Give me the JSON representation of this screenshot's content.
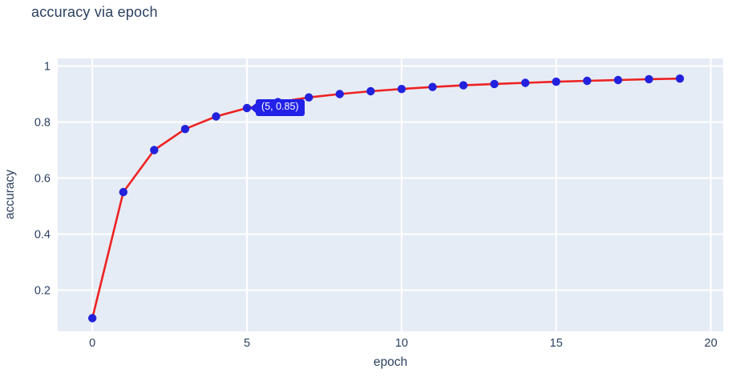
{
  "title": "accuracy via epoch",
  "chart_data": {
    "type": "line",
    "title": "accuracy via epoch",
    "xlabel": "epoch",
    "ylabel": "accuracy",
    "series": [
      {
        "name": "accuracy",
        "x": [
          0,
          1,
          2,
          3,
          4,
          5,
          6,
          7,
          8,
          9,
          10,
          11,
          12,
          13,
          14,
          15,
          16,
          17,
          18,
          19
        ],
        "y": [
          0.1,
          0.55,
          0.7,
          0.775,
          0.82,
          0.85,
          0.871,
          0.888,
          0.9,
          0.91,
          0.918,
          0.925,
          0.931,
          0.936,
          0.94,
          0.944,
          0.947,
          0.95,
          0.953,
          0.955
        ],
        "line_color": "#ee2222",
        "marker_color": "#2222dd"
      }
    ],
    "xticks": [
      0,
      5,
      10,
      15,
      20
    ],
    "yticks": [
      0.2,
      0.4,
      0.6,
      0.8,
      1
    ],
    "xlim": [
      -1.12,
      20.4
    ],
    "ylim": [
      0.053,
      1.027
    ],
    "grid": true,
    "legend": "none",
    "annotation": {
      "label": "(5, 0.85)",
      "x": 5,
      "y": 0.85,
      "bg_color": "#2121e8",
      "text_color": "#ffffff"
    },
    "colors": {
      "paper_bg": "#ffffff",
      "plot_bg": "#e5ecf6",
      "grid": "#ffffff",
      "text": "#2a3f5f"
    }
  }
}
